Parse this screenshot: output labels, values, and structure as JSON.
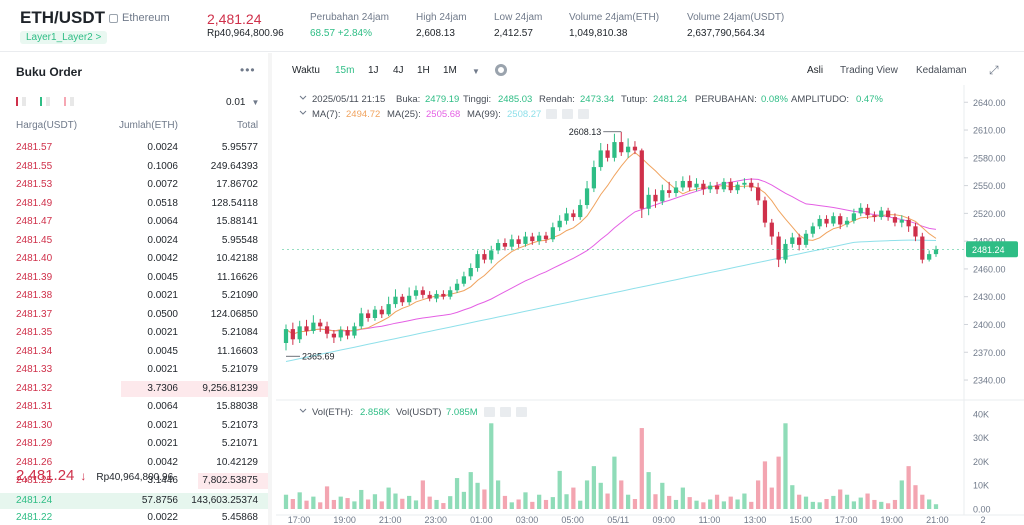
{
  "header": {
    "pair": "ETH/USDT",
    "chain": "Ethereum",
    "tag": "Layer1_Layer2 >",
    "last_price": "2,481.24",
    "last_price_idr": "Rp40,964,800.96",
    "stats": [
      {
        "label": "Perubahan 24jam",
        "value": "68.57 +2.84%",
        "color": "green"
      },
      {
        "label": "High 24jam",
        "value": "2,608.13",
        "color": ""
      },
      {
        "label": "Low 24jam",
        "value": "2,412.57",
        "color": ""
      },
      {
        "label": "Volume 24jam(ETH)",
        "value": "1,049,810.38",
        "color": ""
      },
      {
        "label": "Volume 24jam(USDT)",
        "value": "2,637,790,564.34",
        "color": ""
      }
    ]
  },
  "orderbook": {
    "title": "Buku Order",
    "more": "•••",
    "tick": "0.01",
    "col_price": "Harga(USDT)",
    "col_amount": "Jumlah(ETH)",
    "col_total": "Total",
    "asks": [
      {
        "price": "2481.57",
        "amount": "0.0024",
        "total": "5.95577",
        "depth": 0
      },
      {
        "price": "2481.55",
        "amount": "0.1006",
        "total": "249.64393",
        "depth": 0
      },
      {
        "price": "2481.53",
        "amount": "0.0072",
        "total": "17.86702",
        "depth": 0
      },
      {
        "price": "2481.49",
        "amount": "0.0518",
        "total": "128.54118",
        "depth": 0
      },
      {
        "price": "2481.47",
        "amount": "0.0064",
        "total": "15.88141",
        "depth": 0
      },
      {
        "price": "2481.45",
        "amount": "0.0024",
        "total": "5.95548",
        "depth": 0
      },
      {
        "price": "2481.40",
        "amount": "0.0042",
        "total": "10.42188",
        "depth": 0
      },
      {
        "price": "2481.39",
        "amount": "0.0045",
        "total": "11.16626",
        "depth": 0
      },
      {
        "price": "2481.38",
        "amount": "0.0021",
        "total": "5.21090",
        "depth": 0
      },
      {
        "price": "2481.37",
        "amount": "0.0500",
        "total": "124.06850",
        "depth": 0
      },
      {
        "price": "2481.35",
        "amount": "0.0021",
        "total": "5.21084",
        "depth": 0
      },
      {
        "price": "2481.34",
        "amount": "0.0045",
        "total": "11.16603",
        "depth": 0
      },
      {
        "price": "2481.33",
        "amount": "0.0021",
        "total": "5.21079",
        "depth": 0
      },
      {
        "price": "2481.32",
        "amount": "3.7306",
        "total": "9,256.81239",
        "depth": 0.55
      },
      {
        "price": "2481.31",
        "amount": "0.0064",
        "total": "15.88038",
        "depth": 0
      },
      {
        "price": "2481.30",
        "amount": "0.0021",
        "total": "5.21073",
        "depth": 0
      },
      {
        "price": "2481.29",
        "amount": "0.0021",
        "total": "5.21071",
        "depth": 0
      },
      {
        "price": "2481.26",
        "amount": "0.0042",
        "total": "10.42129",
        "depth": 0
      },
      {
        "price": "2481.25",
        "amount": "3.1446",
        "total": "7,802.53875",
        "depth": 0.26
      }
    ],
    "mid_price": "2,481.24",
    "mid_arrow": "↓",
    "mid_idr": "Rp40,964,800.96",
    "bids": [
      {
        "price": "2481.24",
        "amount": "57.8756",
        "total": "143,603.25374",
        "depth": 1
      },
      {
        "price": "2481.22",
        "amount": "0.0022",
        "total": "5.45868",
        "depth": 0
      }
    ]
  },
  "toolbar": {
    "time_label": "Waktu",
    "intervals": [
      "15m",
      "1J",
      "4J",
      "1H",
      "1M"
    ],
    "active_interval": "15m",
    "views": [
      "Asli",
      "Trading View",
      "Kedalaman"
    ],
    "active_view": "Asli"
  },
  "chart_data": {
    "type": "candlestick",
    "info": {
      "date": "2025/05/11 21:15",
      "open_label": "Buka:",
      "open": "2479.19",
      "high_label": "Tinggi:",
      "high": "2485.03",
      "low_label": "Rendah:",
      "low": "2473.34",
      "close_label": "Tutup:",
      "close": "2481.24",
      "change_label": "PERUBAHAN:",
      "change": "0.08%",
      "amp_label": "AMPLITUDO:",
      "amp": "0.47%"
    },
    "ma": [
      {
        "label": "MA(7):",
        "value": "2494.72",
        "color": "#f0a35e"
      },
      {
        "label": "MA(25):",
        "value": "2505.68",
        "color": "#e45fe4"
      },
      {
        "label": "MA(99):",
        "value": "2508.27",
        "color": "#8fe0ea"
      }
    ],
    "vol_label": "Vol(ETH):",
    "vol_eth": "2.858K",
    "vol_usdt_label": "Vol(USDT)",
    "vol_usdt": "7.085M",
    "price_ticks": [
      "2640.00",
      "2610.00",
      "2580.00",
      "2550.00",
      "2520.00",
      "2490.00",
      "2460.00",
      "2430.00",
      "2400.00",
      "2370.00",
      "2340.00"
    ],
    "price_tick_values": [
      2640,
      2610,
      2580,
      2550,
      2520,
      2490,
      2460,
      2430,
      2400,
      2370,
      2340
    ],
    "ylim": [
      2326,
      2650
    ],
    "vol_ticks": [
      "40K",
      "30K",
      "20K",
      "10K",
      "0.00"
    ],
    "vol_tick_values": [
      40000,
      30000,
      20000,
      10000,
      0
    ],
    "vol_max": 42000,
    "time_ticks": [
      "17:00",
      "19:00",
      "21:00",
      "23:00",
      "01:00",
      "03:00",
      "05:00",
      "05/11",
      "09:00",
      "11:00",
      "13:00",
      "15:00",
      "17:00",
      "19:00",
      "21:00",
      "2"
    ],
    "current_price_label": "2481.24",
    "current_price": 2481.24,
    "high_marker": "2608.13",
    "high_value": 2608.13,
    "low_marker": "2365.69",
    "low_value": 2365.69,
    "candles": [
      [
        2380,
        2395,
        2372,
        2400
      ],
      [
        2395,
        2384,
        2378,
        2402
      ],
      [
        2384,
        2398,
        2380,
        2404
      ],
      [
        2398,
        2393,
        2388,
        2405
      ],
      [
        2393,
        2402,
        2390,
        2410
      ],
      [
        2402,
        2398,
        2392,
        2406
      ],
      [
        2398,
        2390,
        2385,
        2403
      ],
      [
        2390,
        2386,
        2380,
        2394
      ],
      [
        2386,
        2394,
        2382,
        2398
      ],
      [
        2394,
        2388,
        2384,
        2398
      ],
      [
        2388,
        2398,
        2385,
        2402
      ],
      [
        2398,
        2412,
        2395,
        2418
      ],
      [
        2412,
        2407,
        2403,
        2416
      ],
      [
        2407,
        2416,
        2404,
        2420
      ],
      [
        2416,
        2411,
        2407,
        2420
      ],
      [
        2411,
        2422,
        2409,
        2430
      ],
      [
        2422,
        2430,
        2418,
        2438
      ],
      [
        2430,
        2424,
        2420,
        2433
      ],
      [
        2424,
        2431,
        2421,
        2440
      ],
      [
        2431,
        2437,
        2427,
        2442
      ],
      [
        2437,
        2432,
        2428,
        2441
      ],
      [
        2432,
        2428,
        2425,
        2436
      ],
      [
        2428,
        2433,
        2424,
        2437
      ],
      [
        2433,
        2430,
        2427,
        2437
      ],
      [
        2430,
        2437,
        2427,
        2441
      ],
      [
        2437,
        2444,
        2434,
        2449
      ],
      [
        2444,
        2452,
        2441,
        2457
      ],
      [
        2452,
        2461,
        2448,
        2466
      ],
      [
        2461,
        2476,
        2457,
        2480
      ],
      [
        2476,
        2470,
        2466,
        2481
      ],
      [
        2470,
        2480,
        2466,
        2485
      ],
      [
        2480,
        2488,
        2476,
        2492
      ],
      [
        2488,
        2484,
        2480,
        2493
      ],
      [
        2484,
        2492,
        2480,
        2497
      ],
      [
        2492,
        2487,
        2483,
        2496
      ],
      [
        2487,
        2495,
        2484,
        2500
      ],
      [
        2495,
        2490,
        2486,
        2499
      ],
      [
        2490,
        2496,
        2486,
        2500
      ],
      [
        2496,
        2492,
        2488,
        2500
      ],
      [
        2492,
        2505,
        2489,
        2510
      ],
      [
        2505,
        2512,
        2501,
        2518
      ],
      [
        2512,
        2520,
        2508,
        2526
      ],
      [
        2520,
        2516,
        2512,
        2524
      ],
      [
        2516,
        2529,
        2513,
        2535
      ],
      [
        2529,
        2547,
        2525,
        2555
      ],
      [
        2547,
        2570,
        2543,
        2577
      ],
      [
        2570,
        2588,
        2566,
        2596
      ],
      [
        2588,
        2580,
        2576,
        2595
      ],
      [
        2580,
        2597,
        2576,
        2606
      ],
      [
        2597,
        2586,
        2582,
        2608
      ],
      [
        2586,
        2592,
        2580,
        2601
      ],
      [
        2592,
        2588,
        2584,
        2598
      ],
      [
        2588,
        2525,
        2515,
        2590
      ],
      [
        2525,
        2540,
        2518,
        2548
      ],
      [
        2540,
        2533,
        2526,
        2546
      ],
      [
        2533,
        2545,
        2529,
        2551
      ],
      [
        2545,
        2542,
        2537,
        2554
      ],
      [
        2542,
        2548,
        2538,
        2555
      ],
      [
        2548,
        2555,
        2544,
        2560
      ],
      [
        2555,
        2548,
        2544,
        2561
      ],
      [
        2548,
        2552,
        2544,
        2558
      ],
      [
        2552,
        2546,
        2540,
        2556
      ],
      [
        2546,
        2550,
        2542,
        2554
      ],
      [
        2550,
        2546,
        2541,
        2554
      ],
      [
        2546,
        2554,
        2543,
        2558
      ],
      [
        2554,
        2545,
        2542,
        2558
      ],
      [
        2545,
        2551,
        2541,
        2554
      ],
      [
        2551,
        2553,
        2547,
        2558
      ],
      [
        2553,
        2548,
        2544,
        2558
      ],
      [
        2548,
        2534,
        2529,
        2553
      ],
      [
        2534,
        2510,
        2505,
        2538
      ],
      [
        2510,
        2495,
        2486,
        2514
      ],
      [
        2495,
        2470,
        2462,
        2500
      ],
      [
        2470,
        2487,
        2466,
        2492
      ],
      [
        2487,
        2494,
        2483,
        2499
      ],
      [
        2494,
        2486,
        2480,
        2498
      ],
      [
        2486,
        2498,
        2483,
        2502
      ],
      [
        2498,
        2506,
        2494,
        2510
      ],
      [
        2506,
        2514,
        2503,
        2518
      ],
      [
        2514,
        2509,
        2505,
        2518
      ],
      [
        2509,
        2517,
        2506,
        2521
      ],
      [
        2517,
        2508,
        2503,
        2520
      ],
      [
        2508,
        2512,
        2505,
        2516
      ],
      [
        2512,
        2520,
        2509,
        2525
      ],
      [
        2520,
        2526,
        2517,
        2531
      ],
      [
        2526,
        2518,
        2514,
        2530
      ],
      [
        2518,
        2516,
        2511,
        2522
      ],
      [
        2516,
        2523,
        2513,
        2527
      ],
      [
        2523,
        2516,
        2512,
        2526
      ],
      [
        2516,
        2510,
        2506,
        2520
      ],
      [
        2510,
        2513,
        2505,
        2518
      ],
      [
        2513,
        2506,
        2500,
        2517
      ],
      [
        2506,
        2495,
        2490,
        2510
      ],
      [
        2495,
        2470,
        2466,
        2499
      ],
      [
        2470,
        2476,
        2468,
        2480
      ],
      [
        2476,
        2481,
        2473,
        2485
      ]
    ],
    "volumes": [
      6000,
      4200,
      7000,
      3500,
      5200,
      2800,
      9500,
      3800,
      5200,
      4600,
      3200,
      8000,
      4000,
      6200,
      3200,
      9000,
      6500,
      4300,
      5500,
      3600,
      12000,
      5200,
      3800,
      2500,
      5400,
      13000,
      7200,
      15500,
      11000,
      8200,
      36000,
      12000,
      5500,
      2800,
      4000,
      7000,
      3000,
      6000,
      3800,
      5000,
      16000,
      6200,
      9000,
      3500,
      12000,
      18000,
      11000,
      6500,
      22000,
      12000,
      6000,
      4200,
      34000,
      15500,
      6200,
      11000,
      5500,
      3800,
      9000,
      5000,
      3500,
      2800,
      4000,
      6000,
      3200,
      5200,
      4000,
      6500,
      3000,
      12000,
      20000,
      9000,
      22000,
      36000,
      10000,
      6000,
      5200,
      3000,
      2800,
      4200,
      5500,
      8200,
      6000,
      3200,
      4800,
      6500,
      3800,
      3000,
      2400,
      3800,
      12000,
      18000,
      10000,
      6000,
      4000,
      2000
    ]
  }
}
